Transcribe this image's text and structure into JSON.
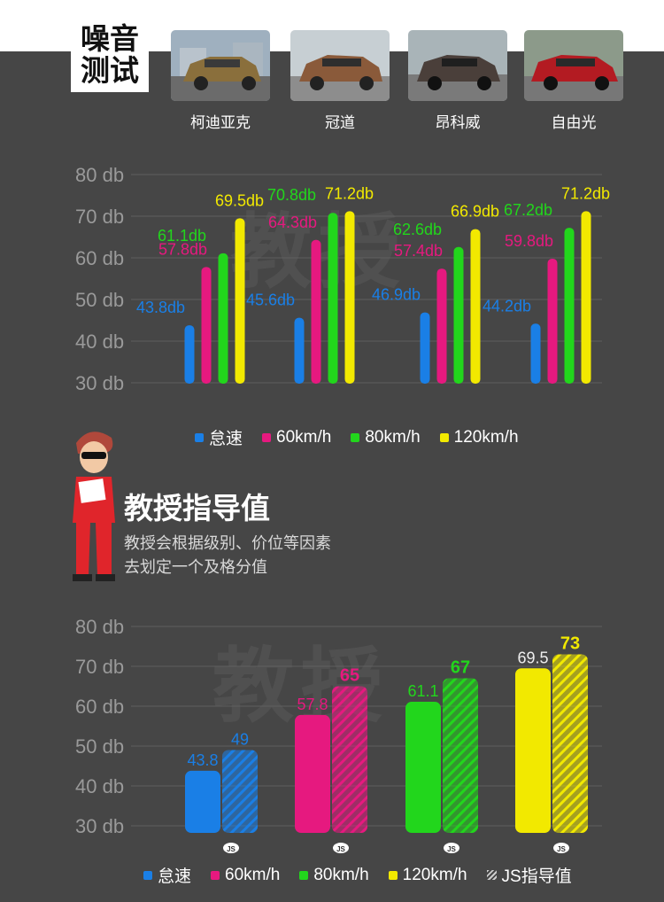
{
  "header": {
    "badge_line1": "噪音",
    "badge_line2": "测试"
  },
  "cars": [
    {
      "name": "柯迪亚克",
      "body_color": "#8a6f3c"
    },
    {
      "name": "冠道",
      "body_color": "#8a5a3a"
    },
    {
      "name": "昂科威",
      "body_color": "#4a3f3a"
    },
    {
      "name": "自由光",
      "body_color": "#b31b22"
    }
  ],
  "professor": {
    "title": "教授指导值",
    "desc_line1": "教授会根据级别、价位等因素",
    "desc_line2": "去划定一个及格分值"
  },
  "watermark_text": "教授",
  "chart_data": [
    {
      "type": "bar",
      "categories": [
        "柯迪亚克",
        "冠道",
        "昂科威",
        "自由光"
      ],
      "y_ticks": [
        "80 db",
        "70 db",
        "60 db",
        "50 db",
        "40 db",
        "30 db"
      ],
      "ylim": [
        30,
        80
      ],
      "series": [
        {
          "name": "怠速",
          "color": "#1a7fe6",
          "values": [
            43.8,
            45.6,
            46.9,
            44.2
          ],
          "labels": [
            "43.8db",
            "45.6db",
            "46.9db",
            "44.2db"
          ]
        },
        {
          "name": "60km/h",
          "color": "#e6197f",
          "values": [
            57.8,
            64.3,
            57.4,
            59.8
          ],
          "labels": [
            "57.8db",
            "64.3db",
            "57.4db",
            "59.8db"
          ]
        },
        {
          "name": "80km/h",
          "color": "#22d61c",
          "values": [
            61.1,
            70.8,
            62.6,
            67.2
          ],
          "labels": [
            "61.1db",
            "70.8db",
            "62.6db",
            "67.2db"
          ]
        },
        {
          "name": "120km/h",
          "color": "#f2e900",
          "values": [
            69.5,
            71.2,
            66.9,
            71.2
          ],
          "labels": [
            "69.5db",
            "71.2db",
            "66.9db",
            "71.2db"
          ]
        }
      ],
      "legend": [
        "怠速",
        "60km/h",
        "80km/h",
        "120km/h"
      ]
    },
    {
      "type": "bar",
      "categories": [
        "怠速",
        "60km/h",
        "80km/h",
        "120km/h"
      ],
      "y_ticks": [
        "80 db",
        "70 db",
        "60 db",
        "50 db",
        "40 db",
        "30 db"
      ],
      "ylim": [
        30,
        80
      ],
      "measured": {
        "values": [
          43.8,
          57.8,
          61.1,
          69.5
        ],
        "labels": [
          "43.8",
          "57.8",
          "61.1",
          "69.5"
        ]
      },
      "guide": {
        "name": "JS指导值",
        "values": [
          49,
          65,
          67,
          73
        ],
        "labels": [
          "49",
          "65",
          "67",
          "73"
        ],
        "tag": "JS"
      },
      "colors": [
        "#1a7fe6",
        "#e6197f",
        "#22d61c",
        "#f2e900"
      ],
      "guide_label_colors": [
        "#1a7fe6",
        "#e6197f",
        "#22d61c",
        "#f2e900"
      ],
      "legend": [
        "怠速",
        "60km/h",
        "80km/h",
        "120km/h",
        "JS指导值"
      ]
    }
  ]
}
